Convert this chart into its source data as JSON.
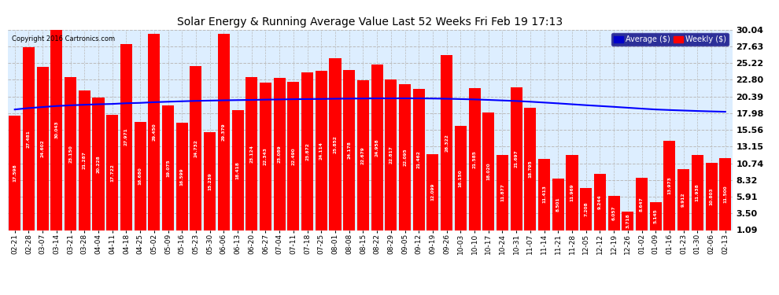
{
  "title": "Solar Energy & Running Average Value Last 52 Weeks Fri Feb 19 17:13",
  "copyright": "Copyright 2016 Cartronics.com",
  "bar_color": "#FF0000",
  "avg_line_color": "#0000FF",
  "background_color": "#FFFFFF",
  "plot_bg_color": "#DDEEFF",
  "grid_color": "#BBBBBB",
  "ytick_labels": [
    "1.09",
    "3.50",
    "5.91",
    "8.32",
    "10.74",
    "13.15",
    "15.56",
    "17.98",
    "20.39",
    "22.80",
    "25.22",
    "27.63",
    "30.04"
  ],
  "ytick_values": [
    1.09,
    3.5,
    5.91,
    8.32,
    10.74,
    13.15,
    15.56,
    17.98,
    20.39,
    22.8,
    25.22,
    27.63,
    30.04
  ],
  "categories": [
    "02-21",
    "02-28",
    "03-07",
    "03-14",
    "03-21",
    "03-28",
    "04-04",
    "04-11",
    "04-18",
    "04-25",
    "05-02",
    "05-09",
    "05-16",
    "05-23",
    "05-30",
    "06-06",
    "06-13",
    "06-20",
    "06-27",
    "07-04",
    "07-11",
    "07-18",
    "07-25",
    "08-01",
    "08-08",
    "08-15",
    "08-22",
    "08-29",
    "09-05",
    "09-12",
    "09-19",
    "09-26",
    "10-03",
    "10-10",
    "10-17",
    "10-24",
    "10-31",
    "11-07",
    "11-14",
    "11-21",
    "11-28",
    "12-05",
    "12-12",
    "12-19",
    "12-26",
    "01-02",
    "01-09",
    "01-16",
    "01-23",
    "01-30",
    "02-06",
    "02-13"
  ],
  "bar_values": [
    17.598,
    27.481,
    24.602,
    30.043,
    23.15,
    21.287,
    20.228,
    17.722,
    27.971,
    16.68,
    29.45,
    19.075,
    16.599,
    24.732,
    15.239,
    29.379,
    18.418,
    23.124,
    22.343,
    23.089,
    22.49,
    23.872,
    24.114,
    25.852,
    24.178,
    22.679,
    24.958,
    22.817,
    22.095,
    21.462,
    12.099,
    26.322,
    16.15,
    21.585,
    18.02,
    11.877,
    21.697,
    18.795,
    11.413,
    8.501,
    11.969,
    7.208,
    9.244,
    6.057,
    3.718,
    8.647,
    5.145,
    13.973,
    9.912,
    11.938,
    10.803,
    11.5
  ],
  "avg_values": [
    18.5,
    18.7,
    18.85,
    19.0,
    19.1,
    19.18,
    19.25,
    19.3,
    19.4,
    19.45,
    19.55,
    19.62,
    19.68,
    19.74,
    19.78,
    19.82,
    19.85,
    19.88,
    19.92,
    19.95,
    19.98,
    20.0,
    20.02,
    20.05,
    20.07,
    20.08,
    20.1,
    20.1,
    20.1,
    20.1,
    20.08,
    20.05,
    20.0,
    19.95,
    19.88,
    19.8,
    19.72,
    19.62,
    19.5,
    19.38,
    19.25,
    19.12,
    19.0,
    18.88,
    18.75,
    18.62,
    18.5,
    18.42,
    18.35,
    18.28,
    18.22,
    18.17
  ],
  "legend_avg_color": "#0000CC",
  "legend_weekly_color": "#FF0000",
  "legend_bg_color": "#000080",
  "ymin": 1.09,
  "ymax": 30.04,
  "bar_bottom": 1.09
}
